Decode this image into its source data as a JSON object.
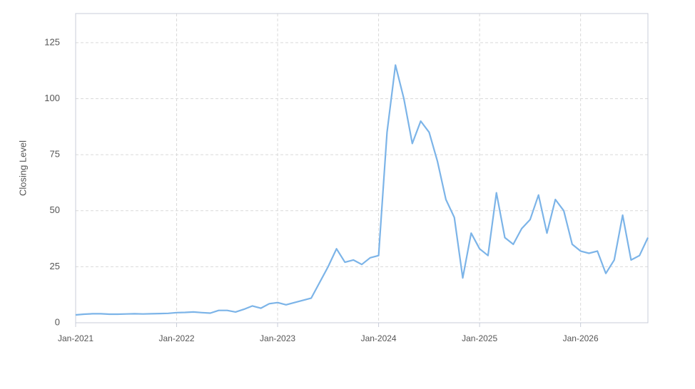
{
  "chart_data": {
    "type": "line",
    "y_label": "Closing Level",
    "x": [
      "2021-01",
      "2021-02",
      "2021-03",
      "2021-04",
      "2021-05",
      "2021-06",
      "2021-07",
      "2021-08",
      "2021-09",
      "2021-10",
      "2021-11",
      "2021-12",
      "2022-01",
      "2022-02",
      "2022-03",
      "2022-04",
      "2022-05",
      "2022-06",
      "2022-07",
      "2022-08",
      "2022-09",
      "2022-10",
      "2022-11",
      "2022-12",
      "2023-01",
      "2023-02",
      "2023-03",
      "2023-04",
      "2023-05",
      "2023-06",
      "2023-07",
      "2023-08",
      "2023-09",
      "2023-10",
      "2023-11",
      "2023-12",
      "2024-01",
      "2024-02",
      "2024-03",
      "2024-04",
      "2024-05",
      "2024-06",
      "2024-07",
      "2024-08",
      "2024-09",
      "2024-10",
      "2024-11",
      "2024-12",
      "2025-01",
      "2025-02",
      "2025-03",
      "2025-04",
      "2025-05",
      "2025-06",
      "2025-07",
      "2025-08",
      "2025-09",
      "2025-10",
      "2025-11",
      "2025-12",
      "2026-01",
      "2026-02",
      "2026-03",
      "2026-04",
      "2026-05",
      "2026-06",
      "2026-07",
      "2026-08",
      "2026-09"
    ],
    "series": [
      {
        "name": "Closing Level",
        "color": "#7cb4e8",
        "values": [
          3.5,
          3.8,
          4,
          4,
          3.8,
          3.8,
          3.9,
          4,
          3.9,
          4,
          4.1,
          4.2,
          4.5,
          4.6,
          4.8,
          4.5,
          4.3,
          5.5,
          5.5,
          4.8,
          6,
          7.5,
          6.5,
          8.5,
          9,
          8,
          9,
          10,
          11,
          18,
          25,
          33,
          27,
          28,
          26,
          29,
          30,
          85,
          115,
          100,
          80,
          90,
          85,
          72,
          55,
          47,
          20,
          40,
          33,
          30,
          58,
          38,
          35,
          42,
          46,
          57,
          40,
          55,
          50,
          35,
          32,
          31,
          32,
          22,
          28,
          48,
          28,
          30,
          38
        ]
      }
    ],
    "xlim": [
      "2021-01",
      "2026-09"
    ],
    "xticks": [
      {
        "value": "2021-01",
        "label": "Jan-2021"
      },
      {
        "value": "2022-01",
        "label": "Jan-2022"
      },
      {
        "value": "2023-01",
        "label": "Jan-2023"
      },
      {
        "value": "2024-01",
        "label": "Jan-2024"
      },
      {
        "value": "2025-01",
        "label": "Jan-2025"
      },
      {
        "value": "2026-01",
        "label": "Jan-2026"
      }
    ],
    "ylim": [
      0,
      138
    ],
    "yticks": [
      0,
      25,
      50,
      75,
      100,
      125
    ],
    "grid": true
  }
}
